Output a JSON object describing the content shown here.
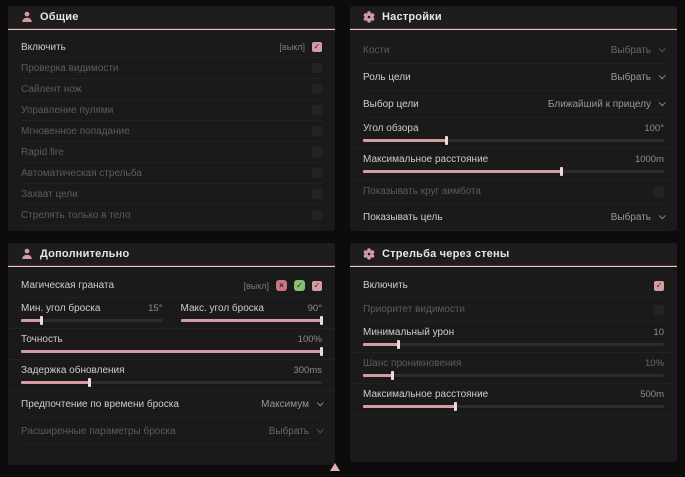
{
  "colors": {
    "page_bg": "#0d0c0c",
    "panel_bg": "#1b1a1a",
    "header_bg": "#1e1c1c",
    "accent": "#d59ba3",
    "accent_light": "#efd9db",
    "underline": "#e6cace",
    "text": "#cfcbcb",
    "text_dim": "#5d5a5a",
    "value": "#8f8b8b",
    "green": "#8abf72",
    "red": "#c97680"
  },
  "icons": {
    "general": "person-icon",
    "settings": "gear-icon",
    "additional": "person-icon",
    "walls": "gear-icon",
    "cross_glyph": "×",
    "check_glyph": "✓"
  },
  "general": {
    "title": "Общие",
    "rows": [
      {
        "label": "Включить",
        "tag": "[выкл]",
        "checked": true
      },
      {
        "label": "Проверка видимости",
        "checked": false
      },
      {
        "label": "Сайлент нож",
        "checked": false
      },
      {
        "label": "Управление пулями",
        "checked": false
      },
      {
        "label": "Мгновенное попадание",
        "checked": false
      },
      {
        "label": "Rapid fire",
        "checked": false
      },
      {
        "label": "Автоматическая стрельба",
        "checked": false
      },
      {
        "label": "Захват цели",
        "checked": false
      },
      {
        "label": "Стрелять только в тело",
        "checked": false
      }
    ]
  },
  "settings": {
    "title": "Настройки",
    "bones": {
      "label": "Кости",
      "value": "Выбрать"
    },
    "target_role": {
      "label": "Роль цели",
      "value": "Выбрать"
    },
    "target_select": {
      "label": "Выбор цели",
      "value": "Ближайший к прицелу"
    },
    "fov": {
      "label": "Угол обзора",
      "value": "100°",
      "pct": 28
    },
    "max_distance": {
      "label": "Максимальное расстояние",
      "value": "1000m",
      "pct": 66
    },
    "show_circle": {
      "label": "Показывать круг аимбота",
      "checked": false
    },
    "show_target": {
      "label": "Показывать цель",
      "value": "Выбрать"
    }
  },
  "additional": {
    "title": "Дополнительно",
    "magic_grenade": {
      "label": "Магическая граната",
      "tag": "[выкл]",
      "checked": true
    },
    "min_angle": {
      "label": "Мин. угол броска",
      "value": "15°",
      "pct": 15
    },
    "max_angle": {
      "label": "Макс. угол броска",
      "value": "90°",
      "pct": 100
    },
    "accuracy": {
      "label": "Точность",
      "value": "100%",
      "pct": 100
    },
    "update_delay": {
      "label": "Задержка обновления",
      "value": "300ms",
      "pct": 23
    },
    "throw_time": {
      "label": "Предпочтение по времени броска",
      "value": "Максимум"
    },
    "advanced": {
      "label": "Расширенные параметры броска",
      "value": "Выбрать"
    }
  },
  "walls": {
    "title": "Стрельба через стены",
    "enable": {
      "label": "Включить",
      "checked": true
    },
    "visibility_priority": {
      "label": "Приоритет видимости",
      "checked": false
    },
    "min_damage": {
      "label": "Минимальный урон",
      "value": "10",
      "pct": 12
    },
    "penetration_chance": {
      "label": "Шанс проникновения",
      "value": "10%",
      "pct": 10
    },
    "max_distance": {
      "label": "Максимальное расстояние",
      "value": "500m",
      "pct": 31
    }
  }
}
